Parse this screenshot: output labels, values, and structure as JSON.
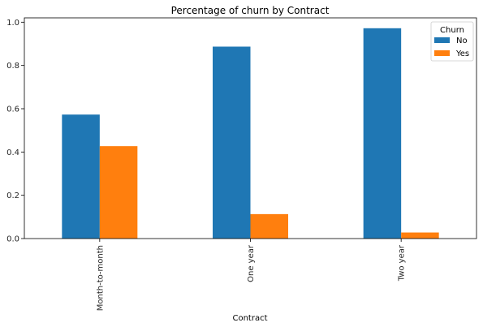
{
  "chart_data": {
    "type": "bar",
    "title": "Percentage of churn by Contract",
    "xlabel": "Contract",
    "ylabel": "",
    "categories": [
      "Month-to-month",
      "One year",
      "Two year"
    ],
    "series": [
      {
        "name": "No",
        "values": [
          0.573,
          0.887,
          0.972
        ],
        "color": "#1f77b4"
      },
      {
        "name": "Yes",
        "values": [
          0.427,
          0.113,
          0.028
        ],
        "color": "#ff7f0e"
      }
    ],
    "ylim": [
      0,
      1.02
    ],
    "yticks": [
      0.0,
      0.2,
      0.4,
      0.6,
      0.8,
      1.0
    ],
    "ytick_labels": [
      "0.0",
      "0.2",
      "0.4",
      "0.6",
      "0.8",
      "1.0"
    ],
    "grid": false,
    "legend": {
      "title": "Churn",
      "placement": "top-right"
    }
  }
}
